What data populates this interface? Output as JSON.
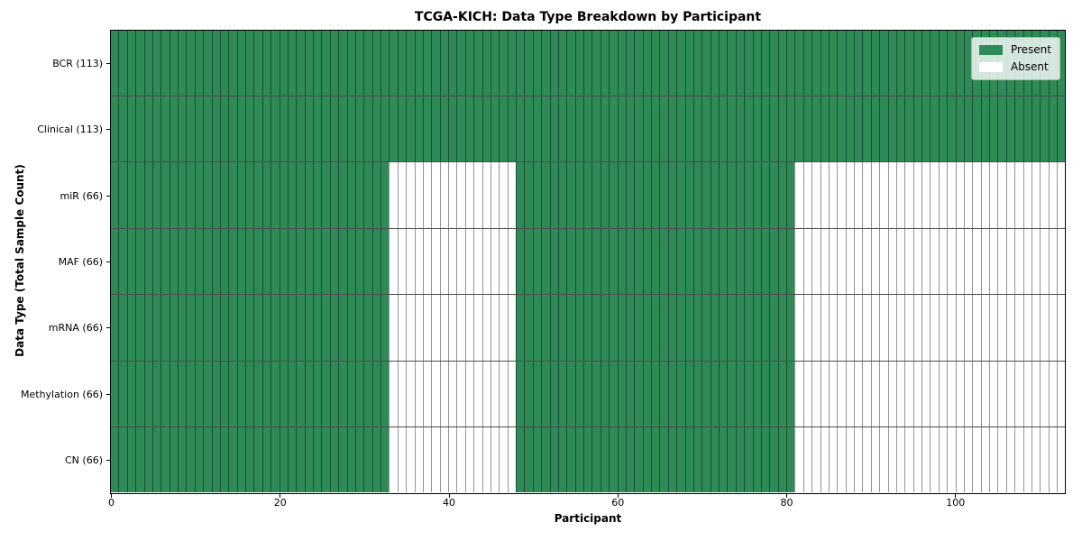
{
  "chart_data": {
    "type": "heatmap",
    "title": "TCGA-KICH: Data Type Breakdown by Participant",
    "xlabel": "Participant",
    "ylabel": "Data Type (Total Sample Count)",
    "n_participants": 113,
    "x_ticks": [
      0,
      20,
      40,
      60,
      80,
      100
    ],
    "x_range": [
      0,
      113
    ],
    "grid": true,
    "legend_position": "upper right",
    "legend": [
      {
        "label": "Present",
        "color": "#2e8b57"
      },
      {
        "label": "Absent",
        "color": "#ffffff"
      }
    ],
    "rows": [
      {
        "label": "BCR (113)",
        "data_type": "BCR",
        "total_samples": 113,
        "present_ranges": [
          [
            0,
            113
          ]
        ]
      },
      {
        "label": "Clinical (113)",
        "data_type": "Clinical",
        "total_samples": 113,
        "present_ranges": [
          [
            0,
            113
          ]
        ]
      },
      {
        "label": "miR (66)",
        "data_type": "miR",
        "total_samples": 66,
        "present_ranges": [
          [
            0,
            33
          ],
          [
            48,
            81
          ]
        ]
      },
      {
        "label": "MAF (66)",
        "data_type": "MAF",
        "total_samples": 66,
        "present_ranges": [
          [
            0,
            33
          ],
          [
            48,
            81
          ]
        ]
      },
      {
        "label": "mRNA (66)",
        "data_type": "mRNA",
        "total_samples": 66,
        "present_ranges": [
          [
            0,
            33
          ],
          [
            48,
            81
          ]
        ]
      },
      {
        "label": "Methylation (66)",
        "data_type": "Methylation",
        "total_samples": 66,
        "present_ranges": [
          [
            0,
            33
          ],
          [
            48,
            81
          ]
        ]
      },
      {
        "label": "CN (66)",
        "data_type": "CN",
        "total_samples": 66,
        "present_ranges": [
          [
            0,
            33
          ],
          [
            48,
            81
          ]
        ]
      }
    ]
  }
}
